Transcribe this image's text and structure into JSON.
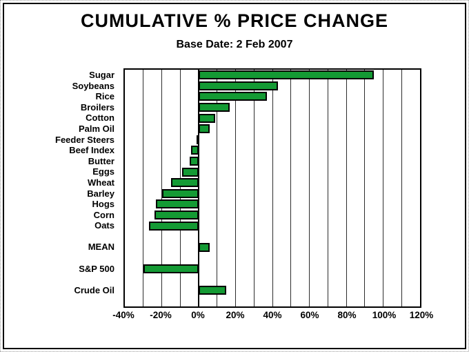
{
  "chart_data": {
    "type": "bar",
    "orientation": "horizontal",
    "title": "CUMULATIVE % PRICE CHANGE",
    "subtitle": "Base Date: 2 Feb 2007",
    "categories": [
      "Sugar",
      "Soybeans",
      "Rice",
      "Broilers",
      "Cotton",
      "Palm Oil",
      "Feeder Steers",
      "Beef Index",
      "Butter",
      "Eggs",
      "Wheat",
      "Barley",
      "Hogs",
      "Corn",
      "Oats",
      "",
      "MEAN",
      "",
      "S&P 500",
      "",
      "Crude Oil",
      ""
    ],
    "values": [
      95,
      43,
      37,
      17,
      9,
      6,
      -1,
      -4,
      -5,
      -9,
      -15,
      -20,
      -23,
      -24,
      -27,
      null,
      6,
      null,
      -30,
      null,
      15,
      null
    ],
    "xlabel": "",
    "ylabel": "",
    "xlim": [
      -40,
      120
    ],
    "gridline_step": 10,
    "tick_label_step": 20,
    "tick_labels": [
      "-40%",
      "-20%",
      "0%",
      "20%",
      "40%",
      "60%",
      "80%",
      "100%",
      "120%"
    ],
    "bar_color": "#149A34",
    "grid": true,
    "legend": false
  }
}
